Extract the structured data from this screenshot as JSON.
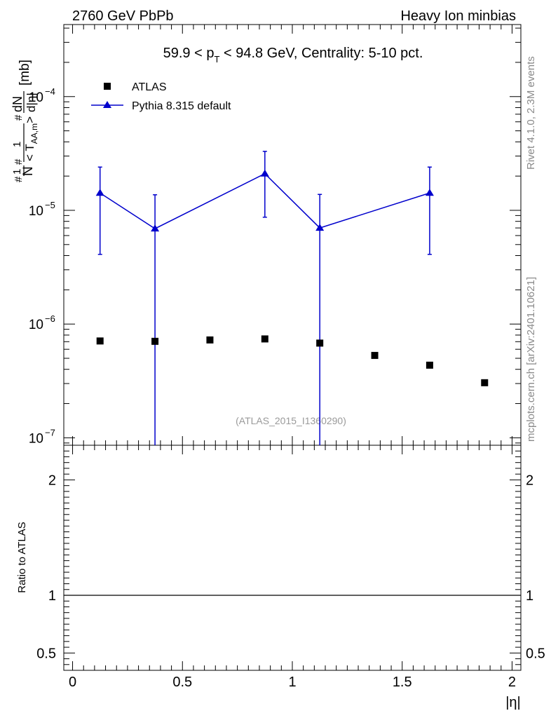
{
  "header": {
    "left": "2760 GeV PbPb",
    "right": "Heavy Ion minbias"
  },
  "side_labels": {
    "rivet": "Rivet 4.1.0,  2.3M events",
    "mcplots": "mcplots.cern.ch [arXiv:2401.10621]"
  },
  "colors": {
    "data": "#000000",
    "mc": "#0000cc",
    "watermark": "#9a9a9a",
    "side": "#8a8a8a"
  },
  "chart_data": {
    "type": "scatter",
    "title_parts": {
      "pre": "59.9 < p",
      "sub": "T",
      "post": " < 94.8 GeV, Centrality: 5-10 pct."
    },
    "watermark": "(ATLAS_2015_I1360290)",
    "xlabel": "|η|",
    "xlim": [
      -0.04,
      2.04
    ],
    "x_ticks": [
      0,
      0.5,
      1,
      1.5,
      2
    ],
    "x_tick_labels": [
      "0",
      "0.5",
      "1",
      "1.5",
      "2"
    ],
    "ylabel_parts": {
      "hash1": "#",
      "one1": "1",
      "N": "N",
      "hash2": "#",
      "one2": "1",
      "taa": "< T",
      "taa_sub": "AA,m",
      "taa_close": ">",
      "hash3": "#",
      "dN": "dN",
      "deta": "d|η|",
      "unit": "[mb]"
    },
    "ylog": true,
    "ylim": [
      8.6e-08,
      0.00043
    ],
    "y_ticks": [
      1e-07,
      1e-06,
      1e-05,
      0.0001
    ],
    "y_tick_labels": [
      {
        "base": "10",
        "exp": "−7"
      },
      {
        "base": "10",
        "exp": "−6"
      },
      {
        "base": "10",
        "exp": "−5"
      },
      {
        "base": "10",
        "exp": "−4"
      }
    ],
    "legend": {
      "position": "top-left",
      "entries": [
        "ATLAS",
        "Pythia 8.315 default"
      ]
    },
    "series": [
      {
        "name": "ATLAS",
        "marker": "square",
        "x": [
          0.125,
          0.375,
          0.625,
          0.875,
          1.125,
          1.375,
          1.625,
          1.875
        ],
        "y": [
          7.1e-07,
          7.05e-07,
          7.25e-07,
          7.4e-07,
          6.8e-07,
          5.3e-07,
          4.35e-07,
          3.05e-07
        ]
      },
      {
        "name": "Pythia 8.315 default",
        "marker": "triangle",
        "line": true,
        "x": [
          0.125,
          0.375,
          0.875,
          1.125,
          1.625
        ],
        "y": [
          1.42e-05,
          6.9e-06,
          2.1e-05,
          7e-06,
          1.42e-05
        ],
        "y_err_low": [
          4.1e-06,
          8.6e-08,
          8.7e-06,
          8.6e-08,
          4.1e-06
        ],
        "y_err_high": [
          2.4e-05,
          1.37e-05,
          3.3e-05,
          1.38e-05,
          2.4e-05
        ]
      }
    ],
    "ratio_panel": {
      "ylabel": "Ratio to ATLAS",
      "ylim": [
        0.35,
        2.3
      ],
      "y_ticks": [
        0.5,
        1,
        2
      ],
      "y_tick_labels": [
        "0.5",
        "1",
        "2"
      ],
      "reference": 1
    }
  }
}
